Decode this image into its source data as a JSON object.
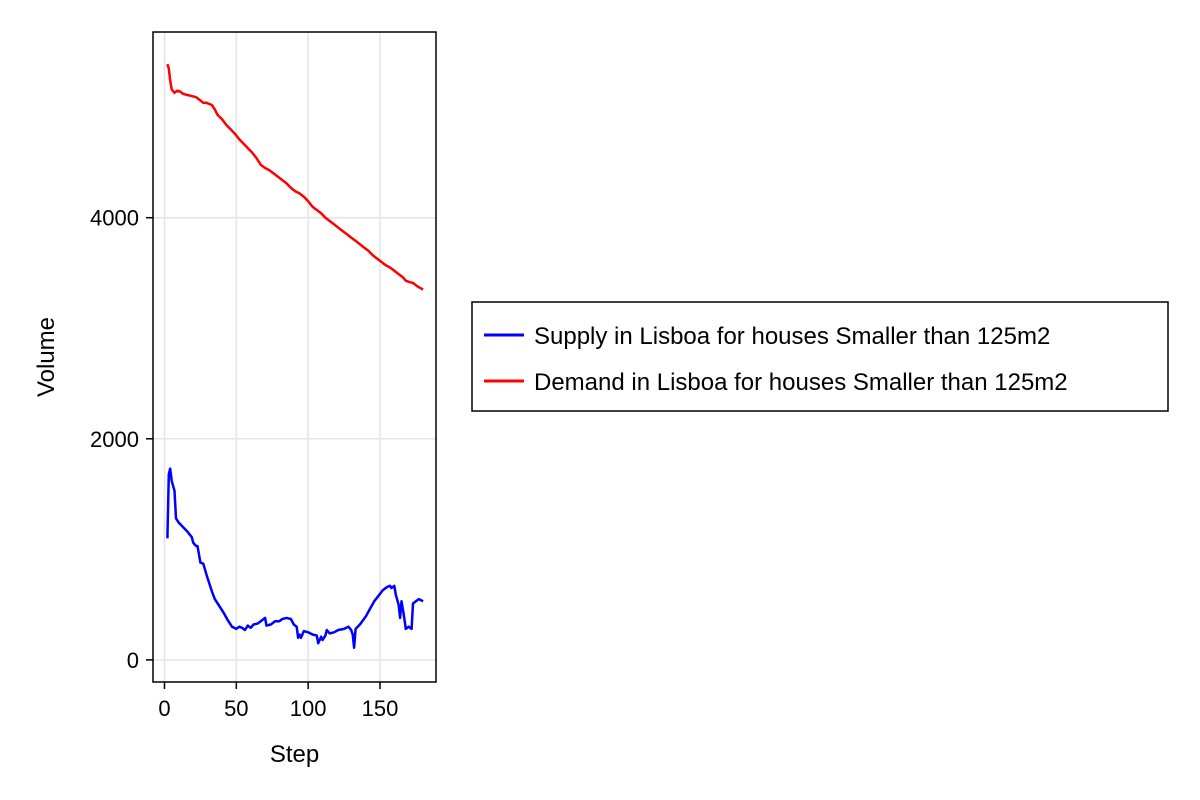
{
  "chart_data": {
    "type": "line",
    "title": "",
    "xlabel": "Step",
    "ylabel": "Volume",
    "xlim": [
      -8,
      189
    ],
    "ylim": [
      -200,
      5680
    ],
    "xticks": [
      0,
      50,
      100,
      150
    ],
    "yticks": [
      0,
      2000,
      4000
    ],
    "grid": true,
    "legend_position": "right",
    "series": [
      {
        "name": "Supply in Lisboa for houses Smaller than 125m2",
        "color": "#0000ff",
        "points": [
          [
            2,
            1100
          ],
          [
            3,
            1680
          ],
          [
            4,
            1730
          ],
          [
            5,
            1620
          ],
          [
            7,
            1530
          ],
          [
            8,
            1280
          ],
          [
            10,
            1240
          ],
          [
            13,
            1200
          ],
          [
            16,
            1160
          ],
          [
            19,
            1110
          ],
          [
            20,
            1060
          ],
          [
            22,
            1030
          ],
          [
            23,
            1030
          ],
          [
            25,
            880
          ],
          [
            27,
            870
          ],
          [
            29,
            780
          ],
          [
            31,
            700
          ],
          [
            33,
            620
          ],
          [
            35,
            550
          ],
          [
            38,
            490
          ],
          [
            41,
            430
          ],
          [
            44,
            360
          ],
          [
            47,
            300
          ],
          [
            50,
            280
          ],
          [
            52,
            300
          ],
          [
            54,
            290
          ],
          [
            56,
            270
          ],
          [
            58,
            310
          ],
          [
            60,
            290
          ],
          [
            62,
            320
          ],
          [
            65,
            330
          ],
          [
            68,
            360
          ],
          [
            70,
            380
          ],
          [
            71,
            310
          ],
          [
            74,
            320
          ],
          [
            77,
            350
          ],
          [
            80,
            350
          ],
          [
            82,
            370
          ],
          [
            85,
            380
          ],
          [
            88,
            370
          ],
          [
            90,
            320
          ],
          [
            92,
            300
          ],
          [
            93,
            200
          ],
          [
            94,
            230
          ],
          [
            95,
            200
          ],
          [
            97,
            260
          ],
          [
            100,
            250
          ],
          [
            103,
            230
          ],
          [
            106,
            220
          ],
          [
            107,
            150
          ],
          [
            109,
            210
          ],
          [
            110,
            180
          ],
          [
            112,
            220
          ],
          [
            113,
            270
          ],
          [
            115,
            240
          ],
          [
            118,
            250
          ],
          [
            121,
            270
          ],
          [
            125,
            280
          ],
          [
            128,
            300
          ],
          [
            130,
            270
          ],
          [
            131,
            230
          ],
          [
            132,
            110
          ],
          [
            133,
            280
          ],
          [
            136,
            320
          ],
          [
            140,
            390
          ],
          [
            143,
            460
          ],
          [
            146,
            530
          ],
          [
            149,
            580
          ],
          [
            152,
            630
          ],
          [
            155,
            660
          ],
          [
            157,
            670
          ],
          [
            158,
            650
          ],
          [
            160,
            670
          ],
          [
            161,
            590
          ],
          [
            163,
            500
          ],
          [
            164,
            380
          ],
          [
            165,
            530
          ],
          [
            166,
            450
          ],
          [
            167,
            370
          ],
          [
            168,
            280
          ],
          [
            170,
            300
          ],
          [
            172,
            280
          ],
          [
            173,
            510
          ],
          [
            175,
            530
          ],
          [
            177,
            550
          ],
          [
            180,
            530
          ]
        ]
      },
      {
        "name": "Demand in Lisboa for houses Smaller than 125m2",
        "color": "#ff0000",
        "points": [
          [
            2,
            5390
          ],
          [
            3,
            5350
          ],
          [
            4,
            5240
          ],
          [
            5,
            5160
          ],
          [
            7,
            5130
          ],
          [
            9,
            5150
          ],
          [
            11,
            5140
          ],
          [
            13,
            5120
          ],
          [
            16,
            5110
          ],
          [
            19,
            5100
          ],
          [
            22,
            5090
          ],
          [
            25,
            5060
          ],
          [
            27,
            5040
          ],
          [
            29,
            5040
          ],
          [
            31,
            5030
          ],
          [
            33,
            5020
          ],
          [
            35,
            4980
          ],
          [
            37,
            4930
          ],
          [
            40,
            4890
          ],
          [
            43,
            4840
          ],
          [
            46,
            4800
          ],
          [
            49,
            4760
          ],
          [
            52,
            4710
          ],
          [
            55,
            4670
          ],
          [
            58,
            4630
          ],
          [
            61,
            4590
          ],
          [
            64,
            4540
          ],
          [
            67,
            4480
          ],
          [
            70,
            4450
          ],
          [
            73,
            4430
          ],
          [
            76,
            4400
          ],
          [
            79,
            4370
          ],
          [
            82,
            4340
          ],
          [
            85,
            4310
          ],
          [
            88,
            4270
          ],
          [
            91,
            4240
          ],
          [
            94,
            4220
          ],
          [
            97,
            4190
          ],
          [
            100,
            4150
          ],
          [
            103,
            4100
          ],
          [
            106,
            4070
          ],
          [
            109,
            4040
          ],
          [
            112,
            4000
          ],
          [
            115,
            3970
          ],
          [
            118,
            3940
          ],
          [
            121,
            3910
          ],
          [
            124,
            3880
          ],
          [
            127,
            3850
          ],
          [
            130,
            3820
          ],
          [
            133,
            3790
          ],
          [
            136,
            3760
          ],
          [
            139,
            3730
          ],
          [
            142,
            3700
          ],
          [
            145,
            3660
          ],
          [
            148,
            3630
          ],
          [
            151,
            3600
          ],
          [
            154,
            3570
          ],
          [
            157,
            3550
          ],
          [
            160,
            3520
          ],
          [
            163,
            3490
          ],
          [
            166,
            3460
          ],
          [
            168,
            3430
          ],
          [
            170,
            3420
          ],
          [
            173,
            3410
          ],
          [
            176,
            3380
          ],
          [
            180,
            3350
          ]
        ]
      }
    ]
  }
}
